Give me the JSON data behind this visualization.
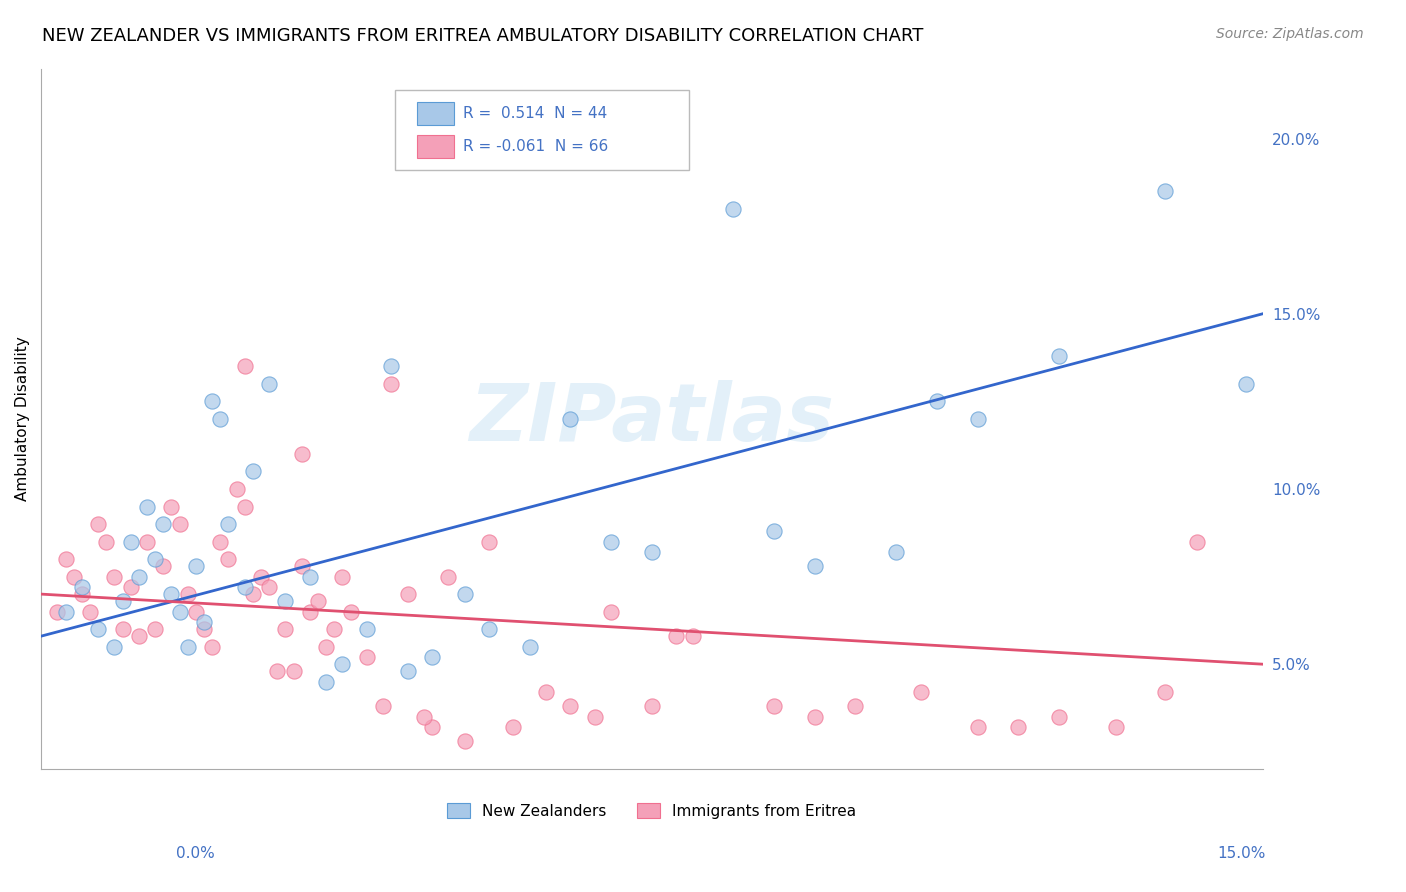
{
  "title": "NEW ZEALANDER VS IMMIGRANTS FROM ERITREA AMBULATORY DISABILITY CORRELATION CHART",
  "source_text": "Source: ZipAtlas.com",
  "ylabel": "Ambulatory Disability",
  "xlim": [
    0.0,
    15.0
  ],
  "ylim": [
    2.0,
    22.0
  ],
  "yticks": [
    5.0,
    10.0,
    15.0,
    20.0
  ],
  "ytick_labels": [
    "5.0%",
    "10.0%",
    "15.0%",
    "20.0%"
  ],
  "legend_r1": "R =  0.514",
  "legend_n1": "N = 44",
  "legend_r2": "R = -0.061",
  "legend_n2": "N = 66",
  "legend_label1": "New Zealanders",
  "legend_label2": "Immigrants from Eritrea",
  "blue_color": "#a8c8e8",
  "pink_color": "#f4a0b8",
  "blue_edge_color": "#5b9bd5",
  "pink_edge_color": "#f07090",
  "blue_line_color": "#3366cc",
  "pink_line_color": "#e05070",
  "watermark": "ZIPatlas",
  "blue_scatter_x": [
    0.3,
    0.5,
    0.7,
    0.9,
    1.0,
    1.1,
    1.2,
    1.3,
    1.4,
    1.5,
    1.6,
    1.7,
    1.8,
    1.9,
    2.0,
    2.1,
    2.2,
    2.3,
    2.5,
    2.6,
    2.8,
    3.0,
    3.3,
    3.5,
    3.7,
    4.0,
    4.3,
    4.5,
    4.8,
    5.2,
    5.5,
    6.0,
    6.5,
    7.0,
    7.5,
    8.5,
    9.0,
    9.5,
    10.5,
    11.0,
    11.5,
    12.5,
    13.8,
    14.8
  ],
  "blue_scatter_y": [
    6.5,
    7.2,
    6.0,
    5.5,
    6.8,
    8.5,
    7.5,
    9.5,
    8.0,
    9.0,
    7.0,
    6.5,
    5.5,
    7.8,
    6.2,
    12.5,
    12.0,
    9.0,
    7.2,
    10.5,
    13.0,
    6.8,
    7.5,
    4.5,
    5.0,
    6.0,
    13.5,
    4.8,
    5.2,
    7.0,
    6.0,
    5.5,
    12.0,
    8.5,
    8.2,
    18.0,
    8.8,
    7.8,
    8.2,
    12.5,
    12.0,
    13.8,
    18.5,
    13.0
  ],
  "pink_scatter_x": [
    0.2,
    0.3,
    0.4,
    0.5,
    0.6,
    0.7,
    0.8,
    0.9,
    1.0,
    1.1,
    1.2,
    1.3,
    1.4,
    1.5,
    1.6,
    1.7,
    1.8,
    1.9,
    2.0,
    2.1,
    2.2,
    2.3,
    2.4,
    2.5,
    2.6,
    2.7,
    2.8,
    2.9,
    3.0,
    3.1,
    3.2,
    3.3,
    3.4,
    3.5,
    3.6,
    3.7,
    3.8,
    4.0,
    4.2,
    4.5,
    4.8,
    5.2,
    5.5,
    6.2,
    6.8,
    7.0,
    7.5,
    8.0,
    9.0,
    9.5,
    10.0,
    10.8,
    11.5,
    12.0,
    12.5,
    13.2,
    13.8,
    14.2,
    4.3,
    5.8,
    6.5,
    7.8,
    4.7,
    5.0,
    3.2,
    2.5
  ],
  "pink_scatter_y": [
    6.5,
    8.0,
    7.5,
    7.0,
    6.5,
    9.0,
    8.5,
    7.5,
    6.0,
    7.2,
    5.8,
    8.5,
    6.0,
    7.8,
    9.5,
    9.0,
    7.0,
    6.5,
    6.0,
    5.5,
    8.5,
    8.0,
    10.0,
    9.5,
    7.0,
    7.5,
    7.2,
    4.8,
    6.0,
    4.8,
    7.8,
    6.5,
    6.8,
    5.5,
    6.0,
    7.5,
    6.5,
    5.2,
    3.8,
    7.0,
    3.2,
    2.8,
    8.5,
    4.2,
    3.5,
    6.5,
    3.8,
    5.8,
    3.8,
    3.5,
    3.8,
    4.2,
    3.2,
    3.2,
    3.5,
    3.2,
    4.2,
    8.5,
    13.0,
    3.2,
    3.8,
    5.8,
    3.5,
    7.5,
    11.0,
    13.5
  ],
  "blue_trend_x": [
    0.0,
    15.0
  ],
  "blue_trend_y": [
    5.8,
    15.0
  ],
  "pink_trend_x": [
    0.0,
    15.0
  ],
  "pink_trend_y": [
    7.0,
    5.0
  ],
  "background_color": "#ffffff",
  "grid_color": "#cccccc",
  "title_fontsize": 13,
  "axis_label_fontsize": 11,
  "tick_fontsize": 11,
  "legend_text_color": "#4472c4"
}
